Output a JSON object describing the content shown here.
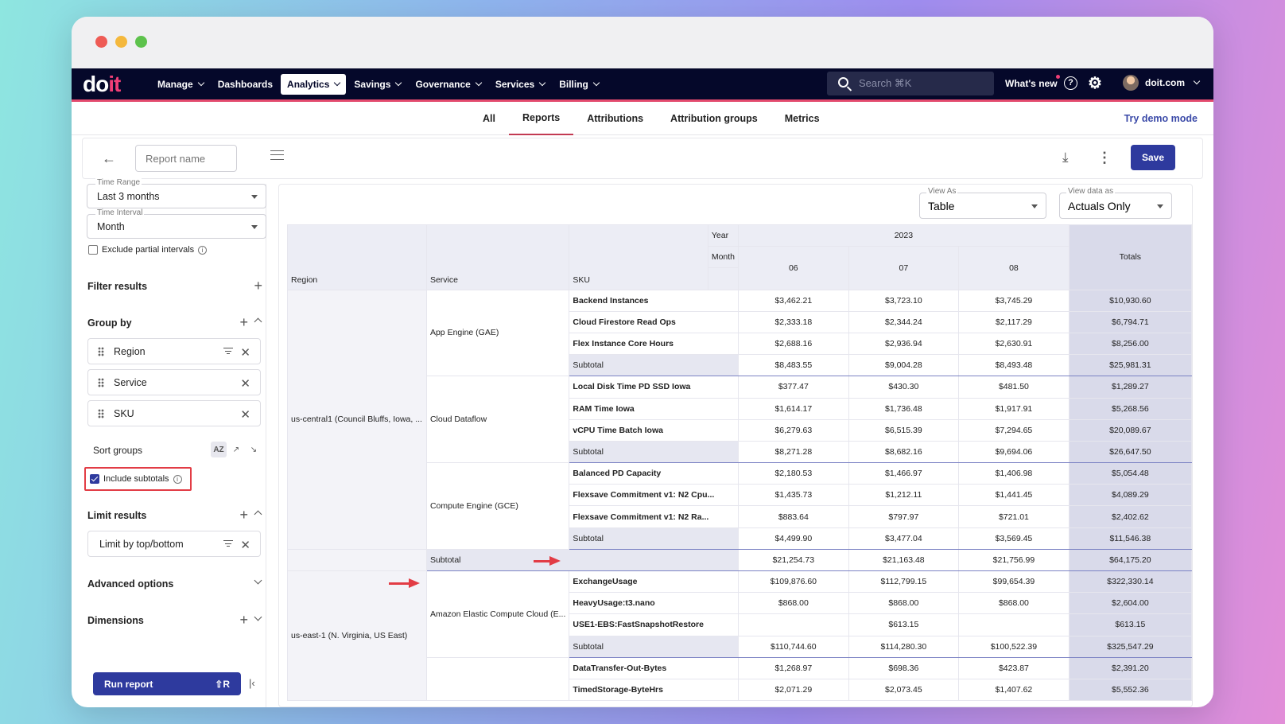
{
  "nav": {
    "logo_main": "do",
    "logo_accent": "it",
    "items": [
      {
        "label": "Manage",
        "dropdown": true
      },
      {
        "label": "Dashboards",
        "dropdown": false
      },
      {
        "label": "Analytics",
        "dropdown": true,
        "active": true
      },
      {
        "label": "Savings",
        "dropdown": true
      },
      {
        "label": "Governance",
        "dropdown": true
      },
      {
        "label": "Services",
        "dropdown": true
      },
      {
        "label": "Billing",
        "dropdown": true
      }
    ],
    "search_placeholder": "Search ⌘K",
    "whats_new": "What's new",
    "help": "?",
    "user": "doit.com"
  },
  "subnav": {
    "tabs": [
      "All",
      "Reports",
      "Attributions",
      "Attribution groups",
      "Metrics"
    ],
    "active_tab": "Reports",
    "demo_link": "Try demo mode"
  },
  "toolbar": {
    "report_name_placeholder": "Report name",
    "save_label": "Save"
  },
  "sidebar": {
    "time_range": {
      "label": "Time Range",
      "value": "Last 3 months"
    },
    "time_interval": {
      "label": "Time Interval",
      "value": "Month"
    },
    "exclude_partial": "Exclude partial intervals",
    "filter_results": "Filter results",
    "group_by": "Group by",
    "groups": [
      "Region",
      "Service",
      "SKU"
    ],
    "sort_groups": "Sort groups",
    "sort_options": [
      "AZ",
      "↗",
      "↘"
    ],
    "include_subtotals": "Include subtotals",
    "limit_results": "Limit results",
    "limit_chip": "Limit by top/bottom",
    "advanced_options": "Advanced options",
    "dimensions": "Dimensions",
    "run_report": "Run report",
    "run_shortcut": "⇧R"
  },
  "main": {
    "view_as": {
      "label": "View As",
      "value": "Table"
    },
    "view_data_as": {
      "label": "View data as",
      "value": "Actuals Only"
    },
    "table": {
      "headers": {
        "year_label": "Year",
        "month_label": "Month",
        "year": "2023",
        "months": [
          "06",
          "07",
          "08"
        ],
        "totals": "Totals",
        "region": "Region",
        "service": "Service",
        "sku": "SKU"
      },
      "regions": [
        {
          "name": "us-central1 (Council Bluffs, Iowa, ...",
          "services": [
            {
              "name": "App Engine (GAE)",
              "skus": [
                {
                  "name": "Backend Instances",
                  "values": [
                    "$3,462.21",
                    "$3,723.10",
                    "$3,745.29"
                  ],
                  "total": "$10,930.60"
                },
                {
                  "name": "Cloud Firestore Read Ops",
                  "values": [
                    "$2,333.18",
                    "$2,344.24",
                    "$2,117.29"
                  ],
                  "total": "$6,794.71"
                },
                {
                  "name": "Flex Instance Core Hours",
                  "values": [
                    "$2,688.16",
                    "$2,936.94",
                    "$2,630.91"
                  ],
                  "total": "$8,256.00"
                }
              ],
              "subtotal": {
                "label": "Subtotal",
                "values": [
                  "$8,483.55",
                  "$9,004.28",
                  "$8,493.48"
                ],
                "total": "$25,981.31"
              }
            },
            {
              "name": "Cloud Dataflow",
              "skus": [
                {
                  "name": "Local Disk Time PD SSD Iowa",
                  "values": [
                    "$377.47",
                    "$430.30",
                    "$481.50"
                  ],
                  "total": "$1,289.27"
                },
                {
                  "name": "RAM Time Iowa",
                  "values": [
                    "$1,614.17",
                    "$1,736.48",
                    "$1,917.91"
                  ],
                  "total": "$5,268.56"
                },
                {
                  "name": "vCPU Time Batch Iowa",
                  "values": [
                    "$6,279.63",
                    "$6,515.39",
                    "$7,294.65"
                  ],
                  "total": "$20,089.67"
                }
              ],
              "subtotal": {
                "label": "Subtotal",
                "values": [
                  "$8,271.28",
                  "$8,682.16",
                  "$9,694.06"
                ],
                "total": "$26,647.50"
              }
            },
            {
              "name": "Compute Engine (GCE)",
              "skus": [
                {
                  "name": "Balanced PD Capacity",
                  "values": [
                    "$2,180.53",
                    "$1,466.97",
                    "$1,406.98"
                  ],
                  "total": "$5,054.48"
                },
                {
                  "name": "Flexsave Commitment v1: N2 Cpu...",
                  "values": [
                    "$1,435.73",
                    "$1,212.11",
                    "$1,441.45"
                  ],
                  "total": "$4,089.29"
                },
                {
                  "name": "Flexsave Commitment v1: N2 Ra...",
                  "values": [
                    "$883.64",
                    "$797.97",
                    "$721.01"
                  ],
                  "total": "$2,402.62"
                }
              ],
              "subtotal": {
                "label": "Subtotal",
                "values": [
                  "$4,499.90",
                  "$3,477.04",
                  "$3,569.45"
                ],
                "total": "$11,546.38"
              }
            }
          ],
          "subtotal": {
            "label": "Subtotal",
            "values": [
              "$21,254.73",
              "$21,163.48",
              "$21,756.99"
            ],
            "total": "$64,175.20"
          }
        },
        {
          "name": "us-east-1 (N. Virginia, US East)",
          "services": [
            {
              "name": "Amazon Elastic Compute Cloud (E...",
              "skus": [
                {
                  "name": "ExchangeUsage",
                  "values": [
                    "$109,876.60",
                    "$112,799.15",
                    "$99,654.39"
                  ],
                  "total": "$322,330.14"
                },
                {
                  "name": "HeavyUsage:t3.nano",
                  "values": [
                    "$868.00",
                    "$868.00",
                    "$868.00"
                  ],
                  "total": "$2,604.00"
                },
                {
                  "name": "USE1-EBS:FastSnapshotRestore",
                  "values": [
                    "",
                    "$613.15",
                    ""
                  ],
                  "total": "$613.15"
                }
              ],
              "subtotal": {
                "label": "Subtotal",
                "values": [
                  "$110,744.60",
                  "$114,280.30",
                  "$100,522.39"
                ],
                "total": "$325,547.29"
              }
            },
            {
              "name": "",
              "skus": [
                {
                  "name": "DataTransfer-Out-Bytes",
                  "values": [
                    "$1,268.97",
                    "$698.36",
                    "$423.87"
                  ],
                  "total": "$2,391.20"
                },
                {
                  "name": "TimedStorage-ByteHrs",
                  "values": [
                    "$2,071.29",
                    "$2,073.45",
                    "$1,407.62"
                  ],
                  "total": "$5,552.36"
                }
              ]
            }
          ]
        }
      ]
    }
  }
}
